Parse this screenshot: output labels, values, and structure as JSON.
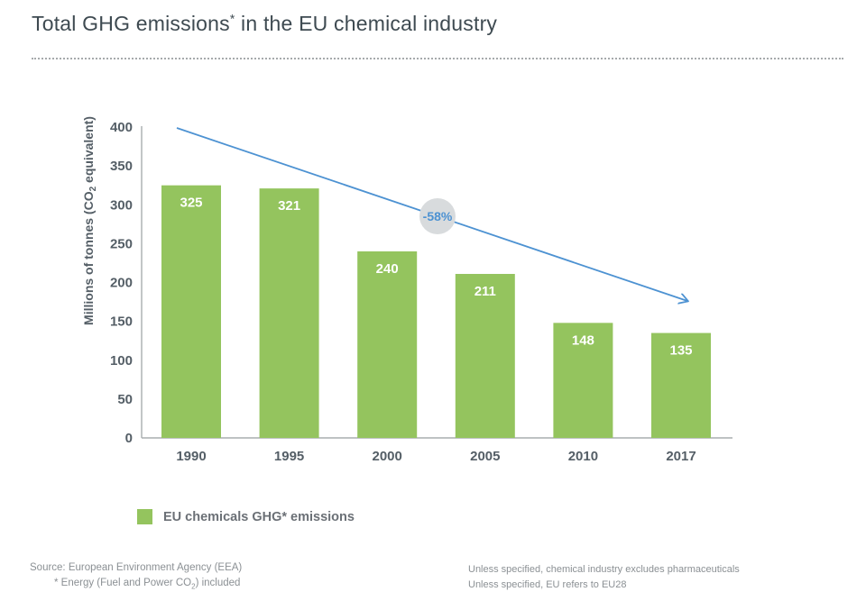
{
  "page": {
    "title_main": "Total GHG emissions",
    "title_sup": "*",
    "title_rest": " in the EU chemical industry"
  },
  "chart_data": {
    "type": "bar",
    "title": "Total GHG emissions* in the EU chemical industry",
    "categories": [
      "1990",
      "1995",
      "2000",
      "2005",
      "2010",
      "2017"
    ],
    "values": [
      325,
      321,
      240,
      211,
      148,
      135
    ],
    "series_name": "EU chemicals GHG* emissions",
    "ylabel": "Millions of tonnes (CO2 equivalent)",
    "ylabel_parts": [
      "Millions of tonnes (CO",
      "2",
      " equivalent)"
    ],
    "ylim": [
      0,
      400
    ],
    "yticks": [
      0,
      50,
      100,
      150,
      200,
      250,
      300,
      350,
      400
    ],
    "grid": false,
    "legend_position": "bottom-left",
    "bar_color": "#94c45e",
    "value_label_color": "#ffffff",
    "axis_color": "#a9adaf",
    "tick_text_color": "#545e66",
    "annotation": {
      "label": "-58%",
      "text_color": "#4d92d2",
      "bubble_color": "#d8dbdd",
      "arrow_color": "#4d92d2"
    }
  },
  "legend": {
    "swatch_color": "#94c45e",
    "label": "EU chemicals GHG* emissions"
  },
  "footnotes": {
    "source": "Source: European Environment Agency (EEA)",
    "energy_note_parts": [
      "* Energy (Fuel and Power CO",
      "2",
      ") included"
    ],
    "right_line1": "Unless specified, chemical industry excludes pharmaceuticals",
    "right_line2": "Unless specified, EU refers to EU28"
  },
  "colors": {
    "title_text": "#3e4a51",
    "bar_green": "#94c45e",
    "arrow_blue": "#4d92d2",
    "badge_gray": "#d8dbdd",
    "footnote_gray": "#8b9094",
    "legend_gray": "#6b7076"
  }
}
